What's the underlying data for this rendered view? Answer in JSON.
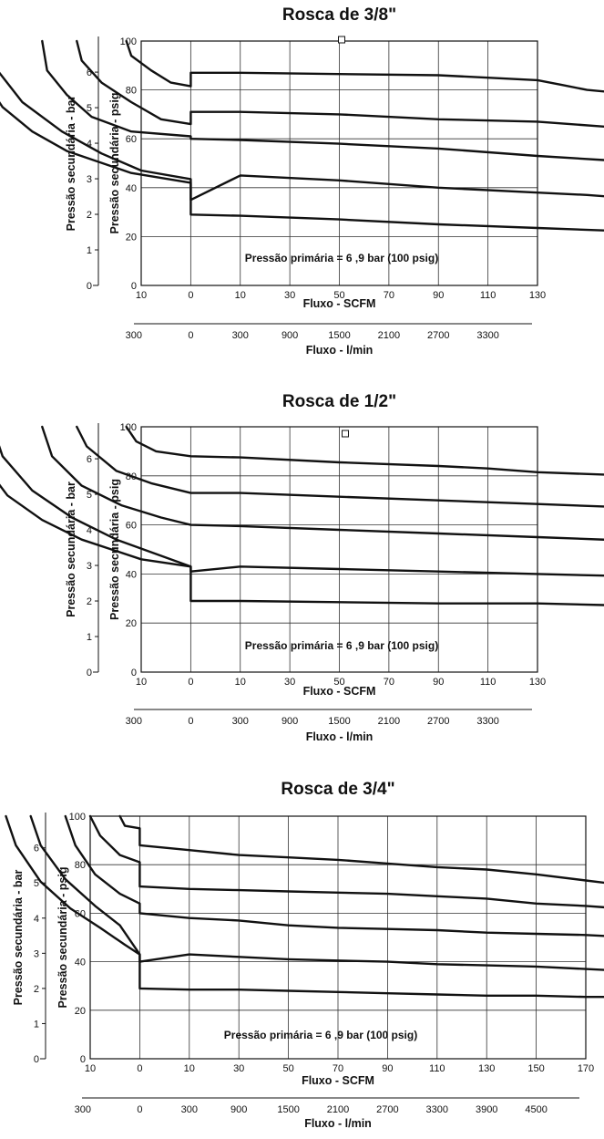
{
  "chart_data": [
    {
      "type": "line",
      "title": "Rosca de 3/8\"",
      "xlabel": "Fluxo - SCFM",
      "x2label": "Fluxo - l/min",
      "ylabel": "Pressão secundária - psig",
      "y2label": "Pressão secundária - bar",
      "annotation": "Pressão primária = 6 ,9 bar  (100 psig)",
      "x_ticks": [
        "10",
        "0",
        "10",
        "30",
        "50",
        "70",
        "90",
        "110",
        "130"
      ],
      "x2_ticks": [
        "300",
        "0",
        "300",
        "900",
        "1500",
        "2100",
        "2700",
        "3300"
      ],
      "y_ticks": [
        "0",
        "20",
        "40",
        "60",
        "80",
        "100"
      ],
      "y2_ticks": [
        "0",
        "1",
        "2",
        "3",
        "4",
        "5",
        "6"
      ],
      "grid": true,
      "series": [
        {
          "points": [
            [
              -1.3,
              100
            ],
            [
              -1.2,
              94
            ],
            [
              -0.8,
              88
            ],
            [
              -0.4,
              83
            ],
            [
              0,
              81.5
            ],
            [
              0,
              87
            ],
            [
              1,
              87
            ],
            [
              3,
              86.5
            ],
            [
              5,
              86
            ],
            [
              6,
              85
            ],
            [
              7,
              84
            ],
            [
              7.5,
              82
            ],
            [
              8,
              80
            ],
            [
              8.8,
              78.5
            ],
            [
              10,
              77
            ],
            [
              11,
              72
            ]
          ]
        },
        {
          "points": [
            [
              -2.3,
              100
            ],
            [
              -2.2,
              92
            ],
            [
              -1.8,
              83
            ],
            [
              -1.2,
              75
            ],
            [
              -0.6,
              68
            ],
            [
              0,
              66
            ],
            [
              0,
              71
            ],
            [
              1,
              71
            ],
            [
              3,
              70
            ],
            [
              5,
              68
            ],
            [
              7,
              67
            ],
            [
              9,
              64
            ],
            [
              10,
              62
            ],
            [
              11,
              60
            ]
          ]
        },
        {
          "points": [
            [
              -3,
              100
            ],
            [
              -2.9,
              88
            ],
            [
              -2.5,
              78
            ],
            [
              -2,
              69
            ],
            [
              -1.2,
              63
            ],
            [
              0,
              61
            ],
            [
              0,
              60
            ],
            [
              1,
              59.5
            ],
            [
              3,
              58
            ],
            [
              5,
              56
            ],
            [
              7,
              53
            ],
            [
              9,
              50.5
            ],
            [
              10,
              48.5
            ],
            [
              11,
              46
            ]
          ]
        },
        {
          "points": [
            [
              -4,
              100
            ],
            [
              -3.9,
              88
            ],
            [
              -3.4,
              75
            ],
            [
              -2.6,
              63
            ],
            [
              -1.8,
              54
            ],
            [
              -1,
              47
            ],
            [
              0,
              43.5
            ],
            [
              0,
              35
            ],
            [
              1,
              45
            ],
            [
              3,
              43
            ],
            [
              5,
              40
            ],
            [
              7,
              38
            ],
            [
              8,
              37
            ],
            [
              9,
              35.5
            ],
            [
              10,
              34
            ],
            [
              11,
              31
            ]
          ]
        },
        {
          "points": [
            [
              -4.5,
              100
            ],
            [
              -4.3,
              88
            ],
            [
              -3.8,
              73
            ],
            [
              -3.2,
              63
            ],
            [
              -2.5,
              55
            ],
            [
              -1.2,
              46
            ],
            [
              0,
              42
            ],
            [
              0,
              29
            ],
            [
              1,
              28.5
            ],
            [
              3,
              27
            ],
            [
              5,
              25
            ],
            [
              7,
              23.5
            ],
            [
              9,
              22
            ],
            [
              10,
              20.5
            ],
            [
              11,
              16
            ],
            [
              11.5,
              12
            ]
          ]
        }
      ]
    },
    {
      "type": "line",
      "title": "Rosca de 1/2\"",
      "xlabel": "Fluxo - SCFM",
      "x2label": "Fluxo - l/min",
      "ylabel": "Pressão secundária - psig",
      "y2label": "Pressão secundária - bar",
      "annotation": "Pressão primária = 6 ,9 bar  (100 psig)",
      "x_ticks": [
        "10",
        "0",
        "10",
        "30",
        "50",
        "70",
        "90",
        "110",
        "130"
      ],
      "x2_ticks": [
        "300",
        "0",
        "300",
        "900",
        "1500",
        "2100",
        "2700",
        "3300"
      ],
      "y_ticks": [
        "0",
        "20",
        "40",
        "60",
        "80",
        "100"
      ],
      "y2_ticks": [
        "0",
        "1",
        "2",
        "3",
        "4",
        "5",
        "6"
      ],
      "grid": true,
      "series": [
        {
          "points": [
            [
              -1.3,
              100
            ],
            [
              -1.1,
              94
            ],
            [
              -0.7,
              90
            ],
            [
              0,
              88
            ],
            [
              1,
              87.5
            ],
            [
              3,
              85.5
            ],
            [
              5,
              84
            ],
            [
              6,
              83
            ],
            [
              7,
              81.5
            ],
            [
              9,
              80
            ],
            [
              10,
              78
            ],
            [
              11,
              74
            ]
          ]
        },
        {
          "points": [
            [
              -2.3,
              100
            ],
            [
              -2.1,
              92
            ],
            [
              -1.5,
              82
            ],
            [
              -0.8,
              77
            ],
            [
              0,
              73
            ],
            [
              1,
              73
            ],
            [
              3,
              71.5
            ],
            [
              5,
              70
            ],
            [
              7,
              68.5
            ],
            [
              9,
              67
            ],
            [
              10,
              65.5
            ],
            [
              11,
              64
            ]
          ]
        },
        {
          "points": [
            [
              -3,
              100
            ],
            [
              -2.8,
              88
            ],
            [
              -2.2,
              76
            ],
            [
              -1.4,
              68
            ],
            [
              -0.6,
              63
            ],
            [
              0,
              60
            ],
            [
              1,
              59.5
            ],
            [
              3,
              58
            ],
            [
              5,
              56.5
            ],
            [
              7,
              55
            ],
            [
              9,
              53.5
            ],
            [
              10,
              52.5
            ],
            [
              11,
              51.5
            ]
          ]
        },
        {
          "points": [
            [
              -4,
              100
            ],
            [
              -3.8,
              88
            ],
            [
              -3.2,
              74
            ],
            [
              -2.4,
              63
            ],
            [
              -1.5,
              54
            ],
            [
              0,
              43
            ],
            [
              0,
              41
            ],
            [
              1,
              43
            ],
            [
              3,
              42
            ],
            [
              5,
              41
            ],
            [
              7,
              40
            ],
            [
              9,
              39
            ],
            [
              10,
              38
            ],
            [
              11,
              37
            ]
          ]
        },
        {
          "points": [
            [
              -4.5,
              100
            ],
            [
              -4.3,
              88
            ],
            [
              -3.7,
              72
            ],
            [
              -3,
              62
            ],
            [
              -2.2,
              54
            ],
            [
              -1,
              46
            ],
            [
              0,
              43
            ],
            [
              0,
              29
            ],
            [
              1,
              29
            ],
            [
              3,
              28.5
            ],
            [
              5,
              28
            ],
            [
              7,
              28
            ],
            [
              9,
              27
            ],
            [
              10,
              26
            ],
            [
              11,
              25.5
            ]
          ]
        }
      ]
    },
    {
      "type": "line",
      "title": "Rosca de 3/4\"",
      "xlabel": "Fluxo - SCFM",
      "x2label": "Fluxo - l/min",
      "ylabel": "Pressão secundária - psig",
      "y2label": "Pressão secundária - bar",
      "annotation": "Pressão primária = 6 ,9 bar  (100 psig)",
      "x_ticks": [
        "10",
        "0",
        "10",
        "30",
        "50",
        "70",
        "90",
        "110",
        "130",
        "150",
        "170"
      ],
      "x2_ticks": [
        "300",
        "0",
        "300",
        "900",
        "1500",
        "2100",
        "2700",
        "3300",
        "3900",
        "4500"
      ],
      "y_ticks": [
        "0",
        "20",
        "40",
        "60",
        "80",
        "100"
      ],
      "y2_ticks": [
        "0",
        "1",
        "2",
        "3",
        "4",
        "5",
        "6"
      ],
      "grid": true,
      "series": [
        {
          "points": [
            [
              -0.4,
              100
            ],
            [
              -0.3,
              96
            ],
            [
              0,
              95
            ],
            [
              0,
              88
            ],
            [
              1,
              86
            ],
            [
              2,
              84
            ],
            [
              3,
              83
            ],
            [
              4,
              82
            ],
            [
              5,
              80.5
            ],
            [
              6,
              79
            ],
            [
              7,
              78
            ],
            [
              8,
              76
            ],
            [
              9,
              73.5
            ],
            [
              10,
              71
            ],
            [
              11,
              69
            ]
          ]
        },
        {
          "points": [
            [
              -1,
              100
            ],
            [
              -0.8,
              92
            ],
            [
              -0.4,
              84
            ],
            [
              0,
              81
            ],
            [
              0,
              71
            ],
            [
              1,
              70
            ],
            [
              2,
              69.5
            ],
            [
              3,
              69
            ],
            [
              4,
              68.5
            ],
            [
              5,
              68
            ],
            [
              6,
              67
            ],
            [
              7,
              66
            ],
            [
              8,
              64
            ],
            [
              9,
              63
            ],
            [
              10,
              61.5
            ],
            [
              11,
              59
            ]
          ]
        },
        {
          "points": [
            [
              -1.5,
              100
            ],
            [
              -1.3,
              88
            ],
            [
              -0.9,
              76
            ],
            [
              -0.4,
              68
            ],
            [
              0,
              64
            ],
            [
              0,
              60
            ],
            [
              1,
              58
            ],
            [
              2,
              57
            ],
            [
              3,
              55
            ],
            [
              4,
              54
            ],
            [
              5,
              53.5
            ],
            [
              6,
              53
            ],
            [
              7,
              52
            ],
            [
              8,
              51.5
            ],
            [
              9,
              51
            ],
            [
              10,
              50
            ],
            [
              11,
              49
            ]
          ]
        },
        {
          "points": [
            [
              -2.2,
              100
            ],
            [
              -2,
              88
            ],
            [
              -1.5,
              74
            ],
            [
              -0.9,
              63
            ],
            [
              -0.4,
              55
            ],
            [
              0,
              43
            ],
            [
              0,
              40
            ],
            [
              1,
              43
            ],
            [
              2,
              42
            ],
            [
              3,
              41
            ],
            [
              4,
              40.5
            ],
            [
              5,
              40
            ],
            [
              6,
              39
            ],
            [
              7,
              38.5
            ],
            [
              8,
              38
            ],
            [
              9,
              37
            ],
            [
              10,
              36
            ],
            [
              11,
              35
            ]
          ]
        },
        {
          "points": [
            [
              -2.7,
              100
            ],
            [
              -2.5,
              88
            ],
            [
              -2,
              73
            ],
            [
              -1.4,
              62
            ],
            [
              -0.8,
              54
            ],
            [
              -0.3,
              47
            ],
            [
              0,
              43
            ],
            [
              0,
              29
            ],
            [
              1,
              28.5
            ],
            [
              2,
              28.5
            ],
            [
              3,
              28
            ],
            [
              4,
              27.5
            ],
            [
              5,
              27
            ],
            [
              6,
              26.5
            ],
            [
              7,
              26
            ],
            [
              8,
              26
            ],
            [
              9,
              25.5
            ],
            [
              10,
              25.5
            ],
            [
              11,
              25
            ]
          ]
        }
      ]
    }
  ]
}
